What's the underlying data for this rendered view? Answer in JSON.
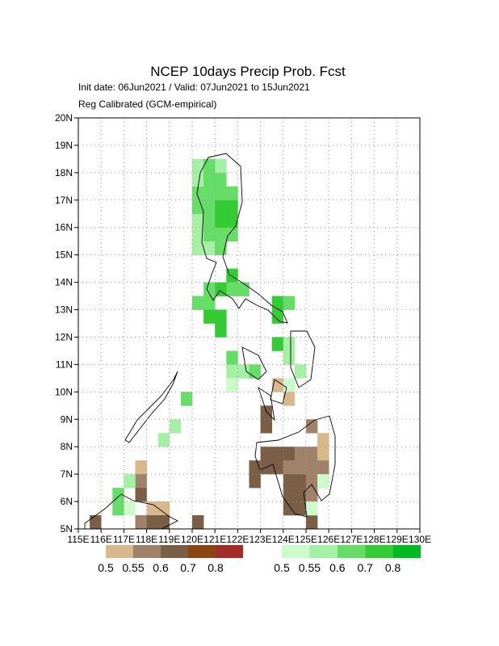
{
  "chart_data": {
    "type": "grid-map",
    "title": "NCEP 10days Precip Prob. Fcst",
    "subtitle": "Init date: 06Jun2021 / Valid: 07Jun2021 to 15Jun2021",
    "subtitle2": "Reg Calibrated (GCM-empirical)",
    "xlim": [
      115,
      130
    ],
    "ylim": [
      5,
      20
    ],
    "cell_size": 0.5,
    "grid": true,
    "xticks": [
      {
        "value": 115,
        "label": "115E"
      },
      {
        "value": 116,
        "label": "116E"
      },
      {
        "value": 117,
        "label": "117E"
      },
      {
        "value": 118,
        "label": "118E"
      },
      {
        "value": 119,
        "label": "119E"
      },
      {
        "value": 120,
        "label": "120E"
      },
      {
        "value": 121,
        "label": "121E"
      },
      {
        "value": 122,
        "label": "122E"
      },
      {
        "value": 123,
        "label": "123E"
      },
      {
        "value": 124,
        "label": "124E"
      },
      {
        "value": 125,
        "label": "125E"
      },
      {
        "value": 126,
        "label": "126E"
      },
      {
        "value": 127,
        "label": "127E"
      },
      {
        "value": 128,
        "label": "128E"
      },
      {
        "value": 129,
        "label": "129E"
      },
      {
        "value": 130,
        "label": "130E"
      }
    ],
    "yticks": [
      {
        "value": 5,
        "label": "5N"
      },
      {
        "value": 6,
        "label": "6N"
      },
      {
        "value": 7,
        "label": "7N"
      },
      {
        "value": 8,
        "label": "8N"
      },
      {
        "value": 9,
        "label": "9N"
      },
      {
        "value": 10,
        "label": "10N"
      },
      {
        "value": 11,
        "label": "11N"
      },
      {
        "value": 12,
        "label": "12N"
      },
      {
        "value": 13,
        "label": "13N"
      },
      {
        "value": 14,
        "label": "14N"
      },
      {
        "value": 15,
        "label": "15N"
      },
      {
        "value": 16,
        "label": "16N"
      },
      {
        "value": 17,
        "label": "17N"
      },
      {
        "value": 18,
        "label": "18N"
      },
      {
        "value": 19,
        "label": "19N"
      },
      {
        "value": 20,
        "label": "20N"
      }
    ],
    "levels": [
      0.5,
      0.55,
      0.6,
      0.7,
      0.8
    ],
    "dry": {
      "colors": [
        "#d9b98c",
        "#a0826a",
        "#7a5f46",
        "#8b4513",
        "#a52a2a"
      ],
      "lon": [
        123.25,
        123.75,
        124.25,
        124.75,
        125.25,
        125.75,
        123.25,
        123.75,
        124.25,
        124.75,
        125.25,
        125.75,
        124.25,
        124.75,
        125.25,
        125.75,
        124.25,
        124.75,
        125.25,
        124.25,
        124.75,
        125.25,
        122.75,
        122.75,
        123.25,
        123.25,
        123.75,
        124.25,
        125.75,
        125.25,
        117.75,
        117.75,
        117.75,
        118.25,
        118.75,
        117.75,
        118.25,
        118.75,
        115.75,
        120.25
      ],
      "lat": [
        7.75,
        7.75,
        7.75,
        7.75,
        7.75,
        7.75,
        7.25,
        7.25,
        7.25,
        7.25,
        7.25,
        7.25,
        6.75,
        6.75,
        6.75,
        6.75,
        6.25,
        6.25,
        6.25,
        5.75,
        5.75,
        5.25,
        7.25,
        6.75,
        9.25,
        8.75,
        10.25,
        9.75,
        8.25,
        8.75,
        7.25,
        6.75,
        6.25,
        5.75,
        5.75,
        5.25,
        5.25,
        5.25,
        5.25,
        5.25
      ],
      "prob": [
        0.6,
        0.6,
        0.6,
        0.55,
        0.55,
        0.5,
        0.6,
        0.6,
        0.55,
        0.55,
        0.55,
        0.55,
        0.6,
        0.6,
        0.55,
        0.6,
        0.6,
        0.6,
        0.55,
        0.6,
        0.6,
        0.6,
        0.6,
        0.6,
        0.6,
        0.6,
        0.5,
        0.5,
        0.5,
        0.55,
        0.5,
        0.55,
        0.6,
        0.5,
        0.5,
        0.55,
        0.6,
        0.6,
        0.6,
        0.6
      ]
    },
    "wet": {
      "colors": [
        "#ccfccc",
        "#a4f0a4",
        "#66dd66",
        "#33cc33",
        "#00bb22"
      ],
      "lon": [
        120.25,
        120.25,
        120.25,
        120.25,
        120.25,
        120.25,
        120.25,
        120.75,
        120.75,
        120.75,
        120.75,
        120.75,
        120.75,
        120.75,
        121.25,
        121.25,
        121.25,
        121.25,
        121.25,
        121.25,
        121.25,
        121.75,
        121.75,
        121.75,
        121.75,
        121.75,
        121.75,
        121.25,
        120.75,
        122.25,
        120.25,
        120.75,
        120.75,
        121.25,
        121.25,
        123.75,
        123.75,
        124.25,
        123.75,
        124.25,
        124.25,
        121.75,
        121.75,
        122.25,
        122.75,
        121.75,
        124.25,
        124.75,
        119.75,
        119.25,
        118.75,
        117.25,
        116.75,
        116.75,
        117.25,
        125.75,
        125.25
      ],
      "lat": [
        15.25,
        15.75,
        16.25,
        16.75,
        17.25,
        17.75,
        18.25,
        15.25,
        15.75,
        16.25,
        16.75,
        17.25,
        17.75,
        18.25,
        15.25,
        15.75,
        16.25,
        16.75,
        17.25,
        17.75,
        18.25,
        15.75,
        16.25,
        16.75,
        17.25,
        14.25,
        13.75,
        13.75,
        13.75,
        13.75,
        13.25,
        13.25,
        12.75,
        12.75,
        12.25,
        13.25,
        12.75,
        13.25,
        11.75,
        11.75,
        11.25,
        11.25,
        10.75,
        10.75,
        10.75,
        10.25,
        10.25,
        10.75,
        9.75,
        8.75,
        8.25,
        6.75,
        6.25,
        5.75,
        5.75,
        6.75,
        5.75
      ],
      "prob": [
        0.55,
        0.55,
        0.55,
        0.6,
        0.6,
        0.55,
        0.55,
        0.55,
        0.6,
        0.6,
        0.6,
        0.6,
        0.6,
        0.6,
        0.6,
        0.6,
        0.7,
        0.7,
        0.6,
        0.6,
        0.55,
        0.6,
        0.7,
        0.7,
        0.6,
        0.7,
        0.6,
        0.7,
        0.6,
        0.6,
        0.6,
        0.6,
        0.7,
        0.7,
        0.7,
        0.7,
        0.7,
        0.6,
        0.7,
        0.55,
        0.55,
        0.6,
        0.55,
        0.55,
        0.6,
        0.5,
        0.5,
        0.55,
        0.6,
        0.55,
        0.55,
        0.55,
        0.6,
        0.6,
        0.5,
        0.5,
        0.5
      ]
    }
  }
}
